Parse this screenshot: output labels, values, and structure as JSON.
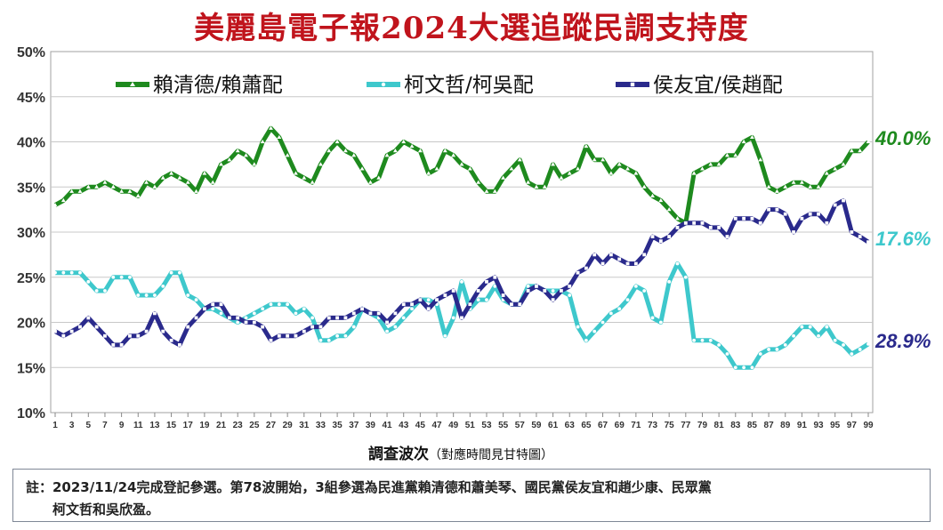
{
  "title": "美麗島電子報2024大選追蹤民調支持度",
  "note": {
    "line1": "註：2023/11/24完成登記參選。第78波開始，3組參選為民進黨賴清德和蕭美琴、國民黨侯友宜和趙少康、民眾黨",
    "line2": "柯文哲和吳欣盈。"
  },
  "chart_data": {
    "type": "line",
    "xlabel": "調查波次",
    "xlabel_note": "（對應時間見甘特圖）",
    "x": [
      1,
      2,
      3,
      4,
      5,
      6,
      7,
      8,
      9,
      10,
      11,
      12,
      13,
      14,
      15,
      16,
      17,
      18,
      19,
      20,
      21,
      22,
      23,
      24,
      25,
      26,
      27,
      28,
      29,
      30,
      31,
      32,
      33,
      34,
      35,
      36,
      37,
      38,
      39,
      40,
      41,
      42,
      43,
      44,
      45,
      46,
      47,
      48,
      49,
      50,
      51,
      52,
      53,
      54,
      55,
      56,
      57,
      58,
      59,
      60,
      61,
      62,
      63,
      64,
      65,
      66,
      67,
      68,
      69,
      70,
      71,
      72,
      73,
      74,
      75,
      76,
      77,
      78,
      79,
      80,
      81,
      82,
      83,
      84,
      85,
      86,
      87,
      88,
      89,
      90,
      91,
      92,
      93,
      94,
      95,
      96,
      97,
      98,
      99
    ],
    "xticks": [
      1,
      3,
      5,
      7,
      9,
      11,
      13,
      15,
      17,
      19,
      21,
      23,
      25,
      27,
      29,
      31,
      33,
      35,
      37,
      39,
      41,
      43,
      45,
      47,
      49,
      51,
      53,
      55,
      57,
      59,
      61,
      63,
      65,
      67,
      69,
      71,
      73,
      75,
      77,
      79,
      81,
      83,
      85,
      87,
      89,
      91,
      93,
      95,
      97,
      99
    ],
    "ylim": [
      10,
      50
    ],
    "yticks": [
      "10%",
      "15%",
      "20%",
      "25%",
      "30%",
      "35%",
      "40%",
      "45%",
      "50%"
    ],
    "grid": "horizontal",
    "legend_position": "top",
    "series": [
      {
        "name": "賴清德/賴蕭配",
        "color": "#1e8a1e",
        "marker": "triangle",
        "end_label": "40.0%",
        "values": [
          33.0,
          33.5,
          34.5,
          34.5,
          35.0,
          35.0,
          35.5,
          35.0,
          34.5,
          34.5,
          34.0,
          35.5,
          35.0,
          36.0,
          36.5,
          36.0,
          35.5,
          34.5,
          36.5,
          35.5,
          37.5,
          38.0,
          39.0,
          38.5,
          37.5,
          40.0,
          41.5,
          40.5,
          38.5,
          36.5,
          36.0,
          35.5,
          37.5,
          39.0,
          40.0,
          39.0,
          38.5,
          37.0,
          35.5,
          36.0,
          38.5,
          39.0,
          40.0,
          39.5,
          39.0,
          36.5,
          37.0,
          39.0,
          38.5,
          37.5,
          37.0,
          35.5,
          34.5,
          34.5,
          36.0,
          37.0,
          38.0,
          35.5,
          35.0,
          35.0,
          37.5,
          36.0,
          36.5,
          37.0,
          39.5,
          38.0,
          38.0,
          36.5,
          37.5,
          37.0,
          36.5,
          35.0,
          34.0,
          33.5,
          32.5,
          31.5,
          31.0,
          36.5,
          37.0,
          37.5,
          37.5,
          38.5,
          38.5,
          40.0,
          40.5,
          38.0,
          35.0,
          34.5,
          35.0,
          35.5,
          35.5,
          35.0,
          35.0,
          36.5,
          37.0,
          37.5,
          39.0,
          39.0,
          40.0
        ]
      },
      {
        "name": "柯文哲/柯吳配",
        "color": "#3ec8cc",
        "marker": "circle",
        "end_label": "17.6%",
        "values": [
          25.5,
          25.5,
          25.5,
          25.5,
          24.5,
          23.5,
          23.5,
          25.0,
          25.0,
          25.0,
          23.0,
          23.0,
          23.0,
          24.0,
          25.5,
          25.5,
          23.0,
          22.5,
          21.5,
          21.5,
          21.0,
          20.5,
          20.0,
          20.5,
          21.0,
          21.5,
          22.0,
          22.0,
          22.0,
          21.0,
          21.5,
          20.5,
          18.0,
          18.0,
          18.5,
          18.5,
          19.5,
          21.5,
          21.0,
          20.5,
          19.0,
          19.5,
          20.5,
          21.5,
          22.5,
          22.5,
          22.0,
          18.5,
          20.5,
          24.5,
          21.5,
          22.5,
          22.5,
          24.0,
          22.5,
          22.0,
          22.0,
          24.0,
          24.0,
          23.5,
          23.5,
          23.5,
          23.0,
          19.5,
          18.0,
          19.0,
          20.0,
          21.0,
          21.5,
          22.5,
          24.0,
          23.5,
          20.5,
          20.0,
          24.5,
          26.5,
          25.0,
          18.0,
          18.0,
          18.0,
          17.5,
          16.5,
          15.0,
          15.0,
          15.0,
          16.5,
          17.0,
          17.0,
          17.5,
          18.5,
          19.5,
          19.5,
          18.5,
          19.5,
          18.0,
          17.5,
          16.5,
          17.0,
          17.6
        ]
      },
      {
        "name": "侯友宜/侯趙配",
        "color": "#2a2a8c",
        "marker": "square",
        "end_label": "28.9%",
        "values": [
          19.0,
          18.5,
          19.0,
          19.5,
          20.5,
          19.5,
          18.5,
          17.5,
          17.5,
          18.5,
          18.5,
          19.0,
          21.0,
          19.0,
          18.0,
          17.5,
          19.5,
          20.5,
          21.5,
          22.0,
          22.0,
          20.5,
          20.5,
          20.0,
          20.0,
          19.5,
          18.0,
          18.5,
          18.5,
          18.5,
          19.0,
          19.5,
          19.5,
          20.5,
          20.5,
          20.5,
          21.0,
          21.5,
          21.0,
          21.0,
          20.0,
          21.0,
          22.0,
          22.0,
          22.5,
          21.5,
          22.5,
          23.0,
          23.5,
          20.5,
          22.0,
          23.5,
          24.5,
          25.0,
          23.0,
          22.0,
          22.0,
          23.5,
          24.0,
          23.5,
          22.5,
          23.5,
          24.0,
          25.5,
          26.0,
          27.5,
          26.5,
          27.5,
          27.0,
          26.5,
          26.5,
          27.5,
          29.5,
          29.0,
          29.5,
          30.5,
          31.0,
          31.0,
          31.0,
          30.5,
          30.5,
          29.5,
          31.5,
          31.5,
          31.5,
          31.0,
          32.5,
          32.5,
          32.0,
          30.0,
          31.5,
          32.0,
          32.0,
          31.0,
          33.0,
          33.5,
          30.0,
          29.5,
          28.9
        ]
      }
    ]
  }
}
